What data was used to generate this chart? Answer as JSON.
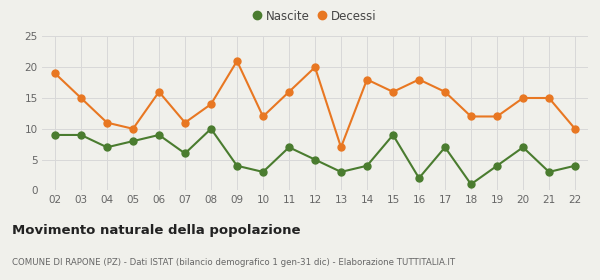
{
  "years": [
    "02",
    "03",
    "04",
    "05",
    "06",
    "07",
    "08",
    "09",
    "10",
    "11",
    "12",
    "13",
    "14",
    "15",
    "16",
    "17",
    "18",
    "19",
    "20",
    "21",
    "22"
  ],
  "nascite": [
    9,
    9,
    7,
    8,
    9,
    6,
    10,
    4,
    3,
    7,
    5,
    3,
    4,
    9,
    2,
    7,
    1,
    4,
    7,
    3,
    4
  ],
  "decessi": [
    19,
    15,
    11,
    10,
    16,
    11,
    14,
    21,
    12,
    16,
    20,
    7,
    18,
    16,
    18,
    16,
    12,
    12,
    15,
    15,
    10
  ],
  "nascite_color": "#4a7c2f",
  "decessi_color": "#e87722",
  "background_color": "#f0f0eb",
  "title": "Movimento naturale della popolazione",
  "subtitle": "COMUNE DI RAPONE (PZ) - Dati ISTAT (bilancio demografico 1 gen-31 dic) - Elaborazione TUTTITALIA.IT",
  "ylim": [
    0,
    25
  ],
  "yticks": [
    0,
    5,
    10,
    15,
    20,
    25
  ],
  "legend_nascite": "Nascite",
  "legend_decessi": "Decessi",
  "grid_color": "#d8d8d8",
  "line_width": 1.5,
  "marker_size": 5
}
